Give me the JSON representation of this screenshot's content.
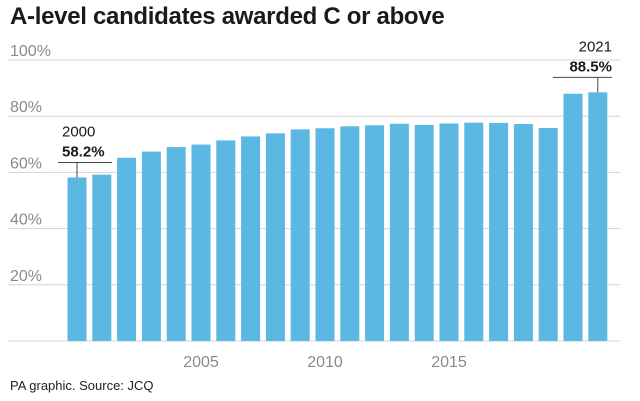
{
  "chart_data": {
    "type": "bar",
    "title": "A-level candidates awarded C or above",
    "source": "PA graphic. Source: JCQ",
    "categories": [
      "2000",
      "2001",
      "2002",
      "2003",
      "2004",
      "2005",
      "2006",
      "2007",
      "2008",
      "2009",
      "2010",
      "2011",
      "2012",
      "2013",
      "2014",
      "2015",
      "2016",
      "2017",
      "2018",
      "2019",
      "2020",
      "2021"
    ],
    "values": [
      58.2,
      59.2,
      65.2,
      67.4,
      69.0,
      69.9,
      71.4,
      72.8,
      73.9,
      75.3,
      75.7,
      76.4,
      76.8,
      77.3,
      76.9,
      77.4,
      77.7,
      77.6,
      77.2,
      75.8,
      88.0,
      88.5
    ],
    "ylim": [
      0,
      100
    ],
    "ytick_labels": [
      "20%",
      "40%",
      "60%",
      "80%",
      "100%"
    ],
    "xtick_labels": [
      "2005",
      "2010",
      "2015"
    ],
    "annotations": [
      {
        "year": "2000",
        "value": "58.2%"
      },
      {
        "year": "2021",
        "value": "88.5%"
      }
    ],
    "bar_color": "#5bb8e2",
    "grid": true
  }
}
